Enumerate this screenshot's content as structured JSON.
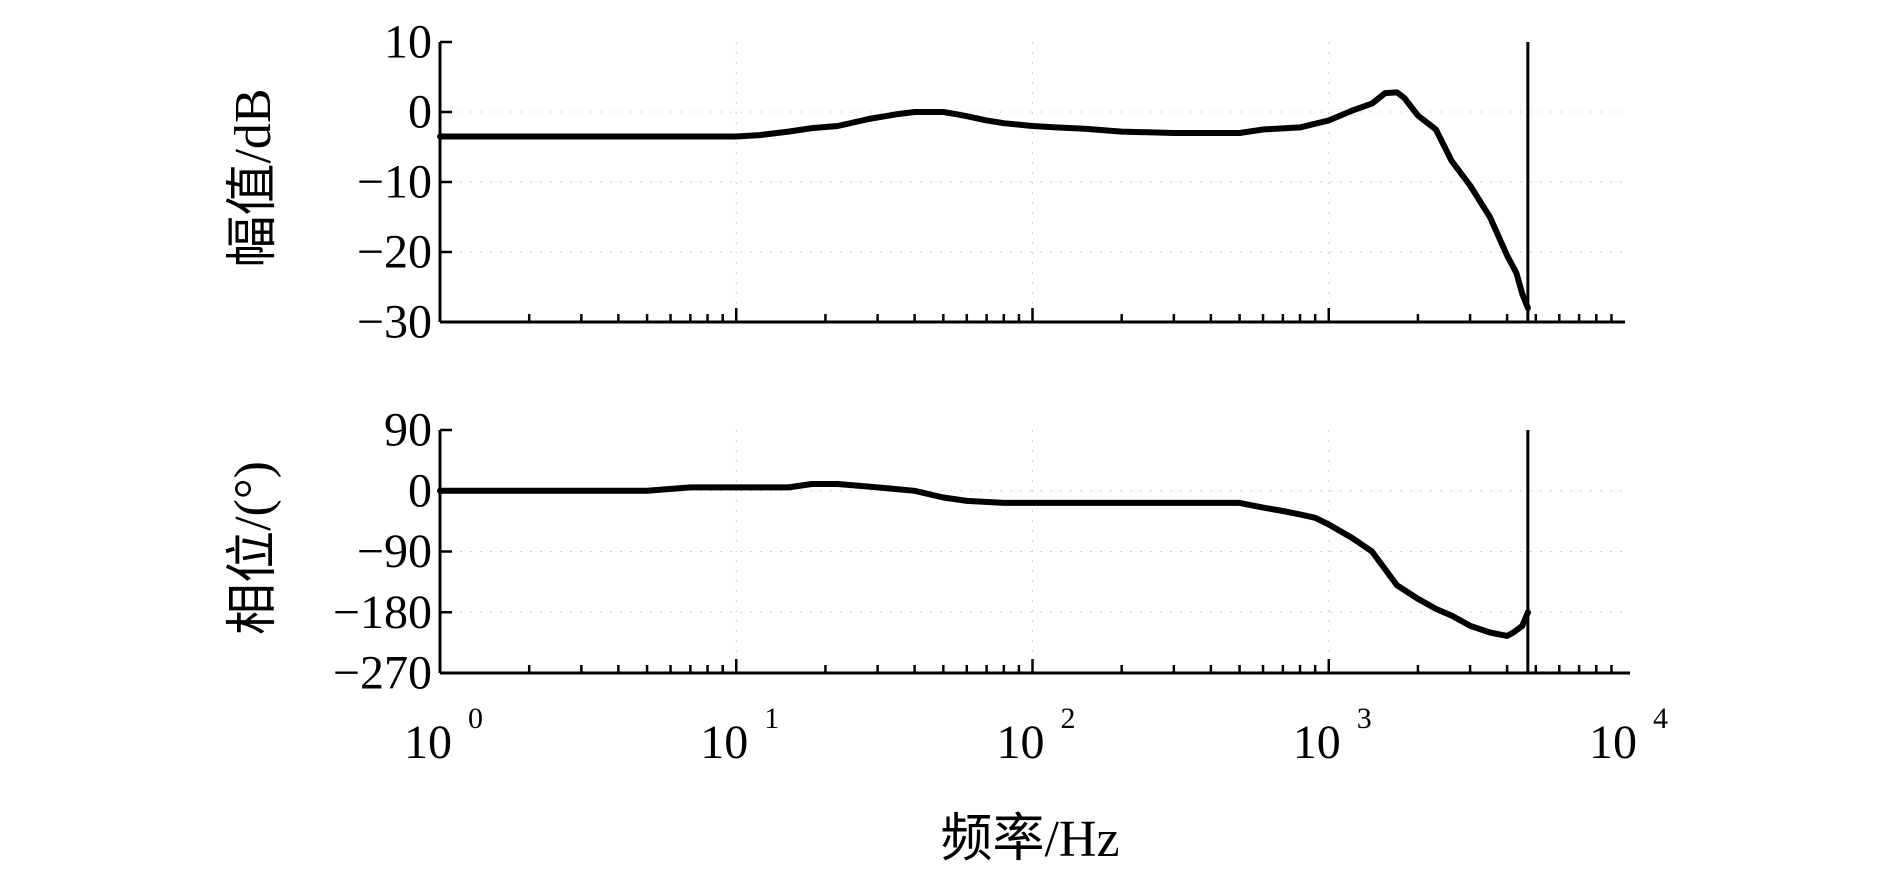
{
  "chart_data": [
    {
      "type": "line",
      "title": "",
      "ylabel": "幅值/dB",
      "xscale": "log",
      "xlim": [
        1,
        10000
      ],
      "ylim": [
        -30,
        10
      ],
      "yticks": [
        10,
        0,
        -10,
        -20,
        -30
      ],
      "ytick_labels": [
        "10",
        "0",
        "−10",
        "−20",
        "−30"
      ],
      "grid": true,
      "vertical_line_x": 4700,
      "series": [
        {
          "x": [
            1,
            2,
            5,
            10,
            12,
            15,
            18,
            22,
            28,
            35,
            40,
            45,
            50,
            55,
            60,
            70,
            80,
            100,
            120,
            150,
            200,
            300,
            500,
            600,
            800,
            1000,
            1200,
            1400,
            1550,
            1700,
            1800,
            2000,
            2300,
            2600,
            3000,
            3500,
            4000,
            4300,
            4500,
            4700
          ],
          "y": [
            -3.5,
            -3.5,
            -3.5,
            -3.5,
            -3.3,
            -2.8,
            -2.3,
            -2.0,
            -1.0,
            -0.3,
            0.0,
            0.0,
            0.0,
            -0.3,
            -0.6,
            -1.2,
            -1.6,
            -2.0,
            -2.2,
            -2.4,
            -2.8,
            -3.0,
            -3.0,
            -2.5,
            -2.2,
            -1.2,
            0.2,
            1.2,
            2.7,
            2.8,
            2.0,
            -0.5,
            -2.5,
            -7.0,
            -10.5,
            -15.0,
            -20.5,
            -23.0,
            -26.0,
            -28.0
          ]
        }
      ]
    },
    {
      "type": "line",
      "title": "",
      "xlabel": "频率/Hz",
      "ylabel": "相位/(°)",
      "xscale": "log",
      "xlim": [
        1,
        10000
      ],
      "ylim": [
        -270,
        90
      ],
      "yticks": [
        90,
        0,
        -90,
        -180,
        -270
      ],
      "ytick_labels": [
        "90",
        "0",
        "−90",
        "−180",
        "−270"
      ],
      "xtick_labels": [
        {
          "base": "10",
          "exp": "0"
        },
        {
          "base": "10",
          "exp": "1"
        },
        {
          "base": "10",
          "exp": "2"
        },
        {
          "base": "10",
          "exp": "3"
        },
        {
          "base": "10",
          "exp": "4"
        }
      ],
      "grid": true,
      "vertical_line_x": 4700,
      "series": [
        {
          "x": [
            1,
            3,
            5,
            7,
            10,
            15,
            18,
            22,
            30,
            40,
            50,
            60,
            80,
            100,
            200,
            300,
            500,
            600,
            700,
            800,
            900,
            1000,
            1200,
            1400,
            1700,
            2000,
            2300,
            2600,
            3000,
            3500,
            4000,
            4200,
            4500,
            4700
          ],
          "y": [
            0,
            0,
            0,
            5,
            5,
            5,
            10,
            10,
            5,
            0,
            -10,
            -15,
            -18,
            -18,
            -18,
            -18,
            -18,
            -25,
            -30,
            -35,
            -40,
            -50,
            -70,
            -90,
            -140,
            -160,
            -175,
            -185,
            -200,
            -210,
            -215,
            -210,
            -200,
            -180
          ]
        }
      ]
    }
  ]
}
